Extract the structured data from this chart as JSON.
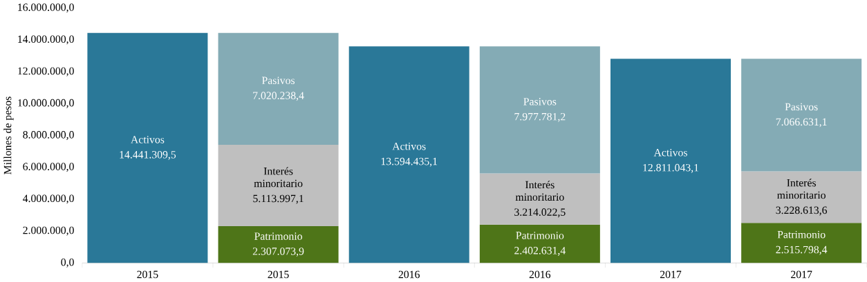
{
  "chart_data": {
    "type": "bar",
    "stacked": true,
    "ylabel": "Millones de pesos",
    "categories": [
      "2015",
      "2015",
      "2016",
      "2016",
      "2017",
      "2017"
    ],
    "series": [
      {
        "name": "Activos",
        "color": "#2a7898",
        "values": [
          14441309.5,
          null,
          13594435.1,
          null,
          12811043.1,
          null
        ],
        "value_labels": [
          "14.441.309,5",
          null,
          "13.594.435,1",
          null,
          "12.811.043,1",
          null
        ]
      },
      {
        "name": "Patrimonio",
        "color": "#4e7518",
        "values": [
          null,
          2307073.9,
          null,
          2402631.4,
          null,
          2515798.4
        ],
        "value_labels": [
          null,
          "2.307.073,9",
          null,
          "2.402.631,4",
          null,
          "2.515.798,4"
        ]
      },
      {
        "name": "Interés minoritario",
        "color": "#bfbfbf",
        "values": [
          null,
          5113997.1,
          null,
          3214022.5,
          null,
          3228613.6
        ],
        "value_labels": [
          null,
          "5.113.997,1",
          null,
          "3.214.022,5",
          null,
          "3.228.613,6"
        ]
      },
      {
        "name": "Pasivos",
        "color": "#84abb5",
        "values": [
          null,
          7020238.4,
          null,
          7977781.2,
          null,
          7066631.1
        ],
        "value_labels": [
          null,
          "7.020.238,4",
          null,
          "7.977.781,2",
          null,
          "7.066.631,1"
        ]
      }
    ],
    "ylim": [
      0,
      16000000
    ],
    "yticks": [
      {
        "value": 0,
        "label": "0,0"
      },
      {
        "value": 2000000,
        "label": "2.000.000,0"
      },
      {
        "value": 4000000,
        "label": "4.000.000,0"
      },
      {
        "value": 6000000,
        "label": "6.000.000,0"
      },
      {
        "value": 8000000,
        "label": "8.000.000,0"
      },
      {
        "value": 10000000,
        "label": "10.000.000,0"
      },
      {
        "value": 12000000,
        "label": "12.000.000,0"
      },
      {
        "value": 14000000,
        "label": "14.000.000,0"
      },
      {
        "value": 16000000,
        "label": "16.000.000,0"
      }
    ],
    "grid": false
  }
}
